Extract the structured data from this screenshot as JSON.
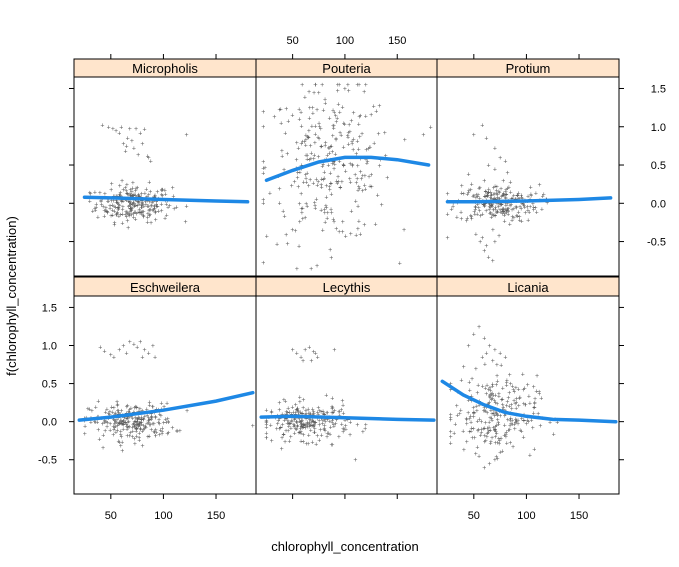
{
  "chart_data": {
    "type": "scatter",
    "layout": "2x3 lattice panels",
    "xlabel": "chlorophyll_concentration",
    "ylabel": "f(chlorophyll_concentration)",
    "xlim": [
      15,
      188
    ],
    "ylim": [
      -0.95,
      1.65
    ],
    "x_ticks": [
      50,
      100,
      150
    ],
    "y_ticks": [
      -0.5,
      0,
      0.5,
      1,
      1.5
    ],
    "x_tick_labels": [
      "50",
      "100",
      "150"
    ],
    "y_tick_labels": [
      "-0.5",
      "0.0",
      "0.5",
      "1.0",
      "1.5"
    ],
    "strip_color": "#FFE5CC",
    "point_color": "#606060",
    "smooth_color": "#1E88E5",
    "panels": [
      {
        "name": "Micropholis",
        "points": {
          "x_center": 72,
          "x_sd": 18,
          "x_min": 30,
          "x_max": 125,
          "y_center": 0.0,
          "y_sd": 0.12,
          "count": 260
        },
        "outliers": [
          [
            42,
            1.02
          ],
          [
            48,
            1.0
          ],
          [
            52,
            0.98
          ],
          [
            55,
            0.95
          ],
          [
            60,
            1.0
          ],
          [
            66,
            0.85
          ],
          [
            70,
            0.82
          ],
          [
            74,
            0.98
          ],
          [
            78,
            0.92
          ],
          [
            82,
            0.97
          ],
          [
            85,
            0.62
          ],
          [
            72,
            0.72
          ],
          [
            65,
            0.75
          ],
          [
            62,
            0.78
          ],
          [
            80,
            0.78
          ],
          [
            86,
            0.6
          ],
          [
            122,
            0.9
          ],
          [
            88,
            0.55
          ],
          [
            68,
            0.98
          ],
          [
            58,
            0.92
          ],
          [
            76,
            0.64
          ],
          [
            64,
            0.68
          ]
        ],
        "smooth": {
          "x": [
            25,
            50,
            100,
            150,
            180
          ],
          "y": [
            0.08,
            0.07,
            0.05,
            0.03,
            0.02
          ]
        }
      },
      {
        "name": "Pouteria",
        "points": {
          "x_center": 85,
          "x_sd": 30,
          "x_min": 22,
          "x_max": 175,
          "y_center": 0.5,
          "y_sd": 0.5,
          "count": 300
        },
        "outliers": [
          [
            22,
            1.2
          ],
          [
            182,
            1.0
          ],
          [
            120,
            1.55
          ],
          [
            75,
            1.45
          ],
          [
            100,
            1.5
          ]
        ],
        "smooth": {
          "x": [
            25,
            50,
            75,
            100,
            125,
            150,
            180
          ],
          "y": [
            0.3,
            0.43,
            0.54,
            0.6,
            0.6,
            0.57,
            0.5
          ]
        }
      },
      {
        "name": "Protium",
        "points": {
          "x_center": 72,
          "x_sd": 20,
          "x_min": 25,
          "x_max": 130,
          "y_center": 0.0,
          "y_sd": 0.12,
          "count": 240
        },
        "outliers": [
          [
            50,
            0.9
          ],
          [
            58,
            1.02
          ],
          [
            62,
            0.85
          ],
          [
            70,
            0.72
          ],
          [
            75,
            0.6
          ],
          [
            80,
            0.55
          ],
          [
            82,
            0.4
          ],
          [
            45,
            0.38
          ],
          [
            48,
            0.25
          ],
          [
            55,
            0.2
          ],
          [
            60,
            0.3
          ],
          [
            66,
            0.15
          ],
          [
            72,
            0.22
          ],
          [
            78,
            0.3
          ],
          [
            85,
            0.15
          ],
          [
            70,
            0.45
          ],
          [
            64,
            0.5
          ],
          [
            52,
            -0.4
          ],
          [
            56,
            -0.5
          ],
          [
            60,
            -0.62
          ],
          [
            64,
            -0.7
          ],
          [
            68,
            -0.75
          ],
          [
            62,
            -0.55
          ],
          [
            70,
            -0.5
          ],
          [
            58,
            -0.45
          ],
          [
            74,
            -0.42
          ],
          [
            25,
            -0.45
          ],
          [
            88,
            0.1
          ],
          [
            92,
            0.05
          ],
          [
            96,
            0.06
          ]
        ],
        "smooth": {
          "x": [
            25,
            50,
            100,
            150,
            180
          ],
          "y": [
            0.02,
            0.02,
            0.03,
            0.05,
            0.07
          ]
        }
      },
      {
        "name": "Eschweilera",
        "points": {
          "x_center": 70,
          "x_sd": 20,
          "x_min": 25,
          "x_max": 140,
          "y_center": 0.0,
          "y_sd": 0.12,
          "count": 260
        },
        "outliers": [
          [
            40,
            0.98
          ],
          [
            44,
            0.93
          ],
          [
            50,
            0.88
          ],
          [
            53,
            0.85
          ],
          [
            58,
            0.95
          ],
          [
            62,
            1.0
          ],
          [
            65,
            0.9
          ],
          [
            68,
            1.05
          ],
          [
            72,
            1.02
          ],
          [
            75,
            0.98
          ],
          [
            78,
            1.05
          ],
          [
            82,
            0.95
          ],
          [
            86,
            0.9
          ],
          [
            90,
            1.0
          ],
          [
            92,
            0.85
          ],
          [
            80,
            0.85
          ],
          [
            185,
            -0.05
          ]
        ],
        "smooth": {
          "x": [
            20,
            50,
            100,
            150,
            185
          ],
          "y": [
            0.02,
            0.06,
            0.15,
            0.27,
            0.38
          ]
        }
      },
      {
        "name": "Lecythis",
        "points": {
          "x_center": 65,
          "x_sd": 20,
          "x_min": 25,
          "x_max": 120,
          "y_center": 0.0,
          "y_sd": 0.12,
          "count": 260
        },
        "outliers": [
          [
            50,
            0.95
          ],
          [
            54,
            0.9
          ],
          [
            58,
            0.85
          ],
          [
            62,
            0.95
          ],
          [
            66,
            0.98
          ],
          [
            70,
            0.92
          ],
          [
            74,
            0.85
          ],
          [
            60,
            0.8
          ],
          [
            68,
            0.8
          ],
          [
            72,
            0.9
          ],
          [
            90,
            0.95
          ],
          [
            88,
            -0.3
          ],
          [
            110,
            -0.5
          ],
          [
            30,
            -0.25
          ]
        ],
        "smooth": {
          "x": [
            20,
            50,
            100,
            150,
            185
          ],
          "y": [
            0.06,
            0.07,
            0.05,
            0.03,
            0.02
          ]
        }
      },
      {
        "name": "Licania",
        "points": {
          "x_center": 70,
          "x_sd": 20,
          "x_min": 28,
          "x_max": 130,
          "y_center": 0.1,
          "y_sd": 0.25,
          "count": 260
        },
        "outliers": [
          [
            45,
            1.0
          ],
          [
            50,
            1.15
          ],
          [
            55,
            1.25
          ],
          [
            60,
            1.1
          ],
          [
            65,
            1.0
          ],
          [
            70,
            0.95
          ],
          [
            75,
            0.9
          ],
          [
            80,
            0.85
          ],
          [
            62,
            0.9
          ],
          [
            58,
            0.85
          ],
          [
            68,
            0.8
          ],
          [
            72,
            0.75
          ],
          [
            52,
            0.7
          ],
          [
            85,
            0.5
          ],
          [
            90,
            0.45
          ],
          [
            60,
            -0.6
          ],
          [
            65,
            -0.55
          ],
          [
            70,
            -0.5
          ],
          [
            55,
            -0.45
          ],
          [
            75,
            -0.4
          ]
        ],
        "smooth": {
          "x": [
            20,
            40,
            60,
            80,
            100,
            125,
            150,
            185
          ],
          "y": [
            0.53,
            0.35,
            0.22,
            0.12,
            0.07,
            0.03,
            0.02,
            0.0
          ]
        }
      }
    ]
  }
}
